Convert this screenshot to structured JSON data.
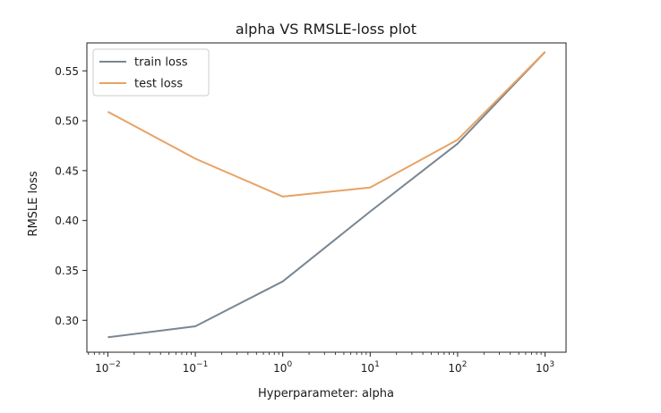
{
  "chart_data": {
    "type": "line",
    "title": "alpha VS RMSLE-loss plot",
    "xlabel": "Hyperparameter: alpha",
    "ylabel": "RMSLE loss",
    "x_scale": "log",
    "x": [
      0.01,
      0.1,
      1,
      10,
      100,
      1000
    ],
    "x_tick_labels": [
      {
        "base": "10",
        "exp": "−2"
      },
      {
        "base": "10",
        "exp": "−1"
      },
      {
        "base": "10",
        "exp": "0"
      },
      {
        "base": "10",
        "exp": "1"
      },
      {
        "base": "10",
        "exp": "2"
      },
      {
        "base": "10",
        "exp": "3"
      }
    ],
    "ylim": [
      0.268,
      0.578
    ],
    "y_ticks": [
      0.3,
      0.35,
      0.4,
      0.45,
      0.5,
      0.55
    ],
    "y_tick_labels": [
      "0.30",
      "0.35",
      "0.40",
      "0.45",
      "0.50",
      "0.55"
    ],
    "grid": false,
    "legend_position": "top-left",
    "series": [
      {
        "name": "train loss",
        "color": "#7a8691",
        "values": [
          0.283,
          0.294,
          0.339,
          0.409,
          0.477,
          0.569
        ]
      },
      {
        "name": "test loss",
        "color": "#e8a264",
        "values": [
          0.509,
          0.462,
          0.424,
          0.433,
          0.481,
          0.569
        ]
      }
    ]
  }
}
